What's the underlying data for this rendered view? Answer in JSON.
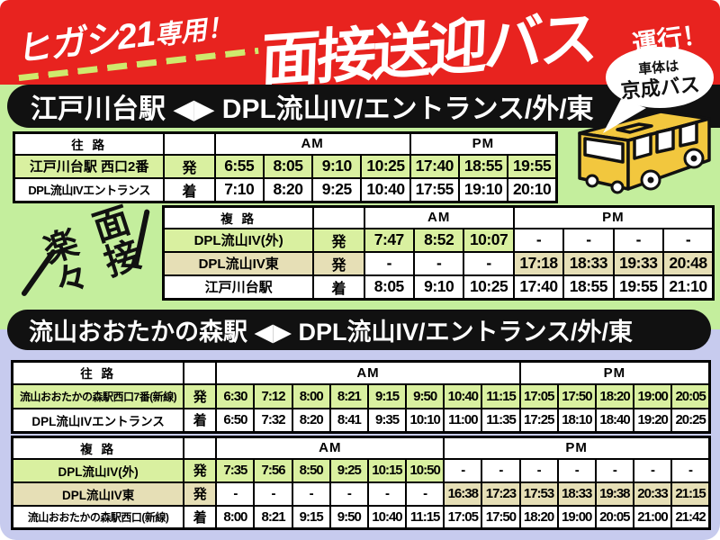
{
  "header": {
    "badge_main": "ヒガシ21",
    "badge_sub": "専用！",
    "title": "面接送迎バス",
    "title_suffix": "運行！",
    "bubble_top": "車体は",
    "bubble_bottom": "京成バス"
  },
  "decoration": {
    "left_text": "楽々",
    "right_text": "面接"
  },
  "sections": {
    "edogawadai_banner": "江戸川台駅 ◀▶ DPL流山IV/エントランス/外/東",
    "otakanomori_banner": "流山おおたかの森駅 ◀▶ DPL流山IV/エントランス/外/東"
  },
  "labels": {
    "am": "AM",
    "pm": "PM"
  },
  "colors": {
    "red": "#e8231f",
    "green_bg": "#c4ee9d",
    "lavender_bg": "#c7cbee",
    "row_green": "#d9f0a0",
    "row_tan": "#e6dfb6",
    "dash_green": "#cfe96d",
    "bus_yellow": "#f2c73e"
  },
  "tables": [
    {
      "name": "timetable-edogawadai-outbound",
      "route_label": "往 路",
      "am": 4,
      "pm": 3,
      "rows": [
        {
          "label": "江戸川台駅 西口2番",
          "mark": "発",
          "style": "green",
          "times": [
            "6:55",
            "8:05",
            "9:10",
            "10:25",
            "17:40",
            "18:55",
            "19:55"
          ]
        },
        {
          "label": "DPL流山IVエントランス",
          "mark": "着",
          "style": "white",
          "times": [
            "7:10",
            "8:20",
            "9:25",
            "10:40",
            "17:55",
            "19:10",
            "20:10"
          ]
        }
      ]
    },
    {
      "name": "timetable-edogawadai-return",
      "route_label": "複 路",
      "am": 3,
      "pm": 4,
      "rows": [
        {
          "label": "DPL流山IV(外)",
          "mark": "発",
          "style": "green",
          "times": [
            "7:47",
            "8:52",
            "10:07",
            "-",
            "-",
            "-",
            "-"
          ]
        },
        {
          "label": "DPL流山IV東",
          "mark": "発",
          "style": "tan",
          "times": [
            "-",
            "-",
            "-",
            "17:18",
            "18:33",
            "19:33",
            "20:48"
          ]
        },
        {
          "label": "江戸川台駅",
          "mark": "着",
          "style": "white",
          "times": [
            "8:05",
            "9:10",
            "10:25",
            "17:40",
            "18:55",
            "19:55",
            "21:10"
          ]
        }
      ]
    },
    {
      "name": "timetable-otakanomori-outbound",
      "route_label": "往 路",
      "am": 8,
      "pm": 5,
      "rows": [
        {
          "label": "流山おおたかの森駅西口7番(新線)",
          "mark": "発",
          "style": "green",
          "times": [
            "6:30",
            "7:12",
            "8:00",
            "8:21",
            "9:15",
            "9:50",
            "10:40",
            "11:15",
            "17:05",
            "17:50",
            "18:20",
            "19:00",
            "20:05"
          ]
        },
        {
          "label": "DPL流山IVエントランス",
          "mark": "着",
          "style": "white",
          "times": [
            "6:50",
            "7:32",
            "8:20",
            "8:41",
            "9:35",
            "10:10",
            "11:00",
            "11:35",
            "17:25",
            "18:10",
            "18:40",
            "19:20",
            "20:25"
          ]
        }
      ]
    },
    {
      "name": "timetable-otakanomori-return",
      "route_label": "複 路",
      "am": 6,
      "pm": 7,
      "rows": [
        {
          "label": "DPL流山IV(外)",
          "mark": "発",
          "style": "green",
          "times": [
            "7:35",
            "7:56",
            "8:50",
            "9:25",
            "10:15",
            "10:50",
            "-",
            "-",
            "-",
            "-",
            "-",
            "-",
            "-"
          ]
        },
        {
          "label": "DPL流山IV東",
          "mark": "発",
          "style": "tan",
          "times": [
            "-",
            "-",
            "-",
            "-",
            "-",
            "-",
            "16:38",
            "17:23",
            "17:53",
            "18:33",
            "19:38",
            "20:33",
            "21:15"
          ]
        },
        {
          "label": "流山おおたかの森駅西口(新線)",
          "mark": "着",
          "style": "white",
          "times": [
            "8:00",
            "8:21",
            "9:15",
            "9:50",
            "10:40",
            "11:15",
            "17:05",
            "17:50",
            "18:20",
            "19:00",
            "20:05",
            "21:00",
            "21:42"
          ]
        }
      ]
    }
  ]
}
